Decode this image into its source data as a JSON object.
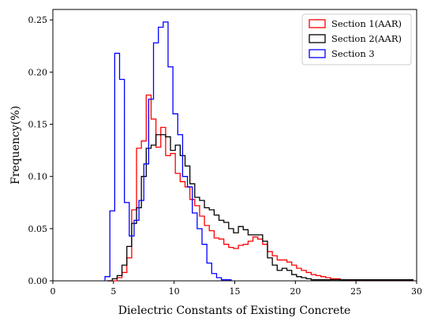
{
  "chart_data": {
    "type": "step",
    "xlabel": "Dielectric Constants of Existing Concrete",
    "ylabel": "Frequency(%)",
    "xlim": [
      0,
      30
    ],
    "ylim": [
      0,
      0.26
    ],
    "xticks": [
      "0",
      "5",
      "10",
      "15",
      "20",
      "25",
      "30"
    ],
    "yticks": [
      "0.00",
      "0.05",
      "0.10",
      "0.15",
      "0.20",
      "0.25"
    ],
    "legend_position": "top-right",
    "grid": false,
    "series": [
      {
        "name": "Section 1(AAR)",
        "color": "#ff0000",
        "bin_start": 4.5,
        "bin_width": 0.4,
        "values": [
          0,
          0,
          0.003,
          0.008,
          0.022,
          0.068,
          0.127,
          0.134,
          0.178,
          0.155,
          0.128,
          0.147,
          0.12,
          0.122,
          0.103,
          0.095,
          0.09,
          0.078,
          0.072,
          0.062,
          0.053,
          0.048,
          0.041,
          0.04,
          0.035,
          0.032,
          0.031,
          0.034,
          0.035,
          0.038,
          0.042,
          0.04,
          0.035,
          0.028,
          0.024,
          0.02,
          0.02,
          0.018,
          0.015,
          0.012,
          0.01,
          0.008,
          0.006,
          0.005,
          0.004,
          0.003,
          0.002,
          0.002,
          0.001,
          0.001,
          0.001,
          0.001,
          0.001,
          0.001,
          0.001,
          0.001,
          0.001,
          0.001,
          0.001,
          0.001,
          0.001,
          0.001,
          0.001
        ]
      },
      {
        "name": "Section 2(AAR)",
        "color": "#000000",
        "bin_start": 4.5,
        "bin_width": 0.4,
        "values": [
          0,
          0.002,
          0.005,
          0.015,
          0.033,
          0.055,
          0.07,
          0.1,
          0.127,
          0.13,
          0.14,
          0.14,
          0.138,
          0.125,
          0.13,
          0.12,
          0.11,
          0.093,
          0.08,
          0.077,
          0.07,
          0.068,
          0.063,
          0.058,
          0.056,
          0.05,
          0.046,
          0.052,
          0.049,
          0.044,
          0.044,
          0.044,
          0.038,
          0.022,
          0.015,
          0.01,
          0.012,
          0.01,
          0.006,
          0.004,
          0.003,
          0.002,
          0.001,
          0.001,
          0.001,
          0.001,
          0.001,
          0.001,
          0.001,
          0.001,
          0.001,
          0.001,
          0.001,
          0.001,
          0.001,
          0.001,
          0.001,
          0.001,
          0.001,
          0.001,
          0.001,
          0.001,
          0.001
        ]
      },
      {
        "name": "Section 3",
        "color": "#0000ff",
        "bin_start": 4.3,
        "bin_width": 0.4,
        "values": [
          0.004,
          0.067,
          0.218,
          0.193,
          0.075,
          0.043,
          0.058,
          0.077,
          0.112,
          0.174,
          0.228,
          0.243,
          0.248,
          0.205,
          0.16,
          0.14,
          0.1,
          0.09,
          0.065,
          0.05,
          0.035,
          0.017,
          0.007,
          0.003,
          0.001,
          0.001
        ]
      }
    ]
  }
}
